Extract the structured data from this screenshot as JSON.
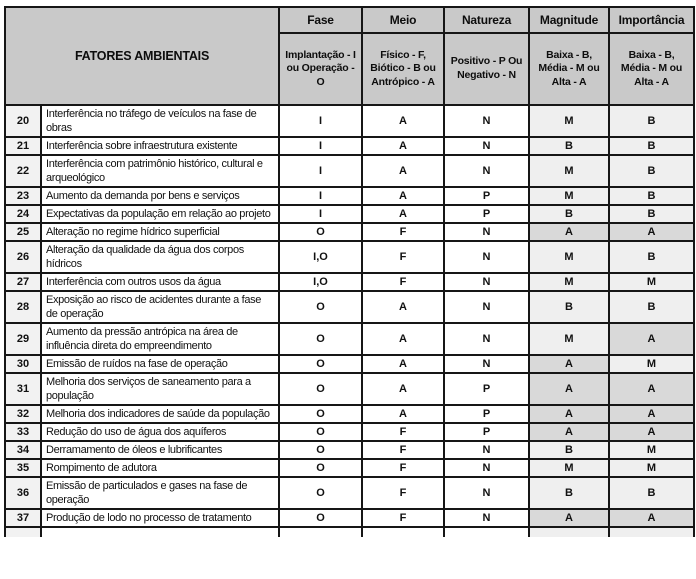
{
  "table": {
    "header": {
      "factors_label": "FATORES AMBIENTAIS",
      "columns": [
        {
          "title": "Fase",
          "subtitle": "Implantação - I ou Operação - O"
        },
        {
          "title": "Meio",
          "subtitle": "Físico - F, Biótico - B ou Antrópico - A"
        },
        {
          "title": "Natureza",
          "subtitle": "Positivo - P Ou Negativo - N"
        },
        {
          "title": "Magnitude",
          "subtitle": "Baixa - B, Média - M ou Alta - A"
        },
        {
          "title": "Importância",
          "subtitle": "Baixa - B, Média - M ou Alta - A"
        }
      ]
    },
    "rows": [
      {
        "num": "20",
        "factor": "Interferência no tráfego de veículos na fase de obras",
        "fase": "I",
        "meio": "A",
        "natureza": "N",
        "magnitude": "M",
        "importancia": "B"
      },
      {
        "num": "21",
        "factor": "Interferência sobre infraestrutura existente",
        "fase": "I",
        "meio": "A",
        "natureza": "N",
        "magnitude": "B",
        "importancia": "B"
      },
      {
        "num": "22",
        "factor": "Interferência com patrimônio histórico, cultural e arqueológico",
        "fase": "I",
        "meio": "A",
        "natureza": "N",
        "magnitude": "M",
        "importancia": "B"
      },
      {
        "num": "23",
        "factor": "Aumento da demanda por bens e serviços",
        "fase": "I",
        "meio": "A",
        "natureza": "P",
        "magnitude": "M",
        "importancia": "B"
      },
      {
        "num": "24",
        "factor": "Expectativas da população em relação ao projeto",
        "fase": "I",
        "meio": "A",
        "natureza": "P",
        "magnitude": "B",
        "importancia": "B"
      },
      {
        "num": "25",
        "factor": "Alteração no regime hídrico superficial",
        "fase": "O",
        "meio": "F",
        "natureza": "N",
        "magnitude": "A",
        "importancia": "A"
      },
      {
        "num": "26",
        "factor": "Alteração da qualidade da água dos corpos hídricos",
        "fase": "I,O",
        "meio": "F",
        "natureza": "N",
        "magnitude": "M",
        "importancia": "B"
      },
      {
        "num": "27",
        "factor": "Interferência com outros usos da água",
        "fase": "I,O",
        "meio": "F",
        "natureza": "N",
        "magnitude": "M",
        "importancia": "M"
      },
      {
        "num": "28",
        "factor": "Exposição ao risco de acidentes durante a fase de operação",
        "fase": "O",
        "meio": "A",
        "natureza": "N",
        "magnitude": "B",
        "importancia": "B"
      },
      {
        "num": "29",
        "factor": "Aumento da pressão antrópica na área de influência direta do empreendimento",
        "fase": "O",
        "meio": "A",
        "natureza": "N",
        "magnitude": "M",
        "importancia": "A"
      },
      {
        "num": "30",
        "factor": "Emissão de ruídos na fase de operação",
        "fase": "O",
        "meio": "A",
        "natureza": "N",
        "magnitude": "A",
        "importancia": "M"
      },
      {
        "num": "31",
        "factor": "Melhoria dos serviços de saneamento para a população",
        "fase": "O",
        "meio": "A",
        "natureza": "P",
        "magnitude": "A",
        "importancia": "A"
      },
      {
        "num": "32",
        "factor": "Melhoria dos indicadores de saúde da população",
        "fase": "O",
        "meio": "A",
        "natureza": "P",
        "magnitude": "A",
        "importancia": "A"
      },
      {
        "num": "33",
        "factor": "Redução do uso de água dos aquíferos",
        "fase": "O",
        "meio": "F",
        "natureza": "P",
        "magnitude": "A",
        "importancia": "A"
      },
      {
        "num": "34",
        "factor": "Derramamento de óleos e lubrificantes",
        "fase": "O",
        "meio": "F",
        "natureza": "N",
        "magnitude": "B",
        "importancia": "M"
      },
      {
        "num": "35",
        "factor": "Rompimento de adutora",
        "fase": "O",
        "meio": "F",
        "natureza": "N",
        "magnitude": "M",
        "importancia": "M"
      },
      {
        "num": "36",
        "factor": "Emissão de particulados e gases na fase de operação",
        "fase": "O",
        "meio": "F",
        "natureza": "N",
        "magnitude": "B",
        "importancia": "B"
      },
      {
        "num": "37",
        "factor": "Produção de lodo no processo de tratamento",
        "fase": "O",
        "meio": "F",
        "natureza": "N",
        "magnitude": "A",
        "importancia": "A"
      }
    ]
  },
  "colors": {
    "header_bg": "#c9c9c9",
    "row_number_bg": "#f2f2f2",
    "rating_cell_bg": "#efefef",
    "rating_alta_bg": "#d9d9d9",
    "border": "#161616",
    "text": "#111111"
  }
}
